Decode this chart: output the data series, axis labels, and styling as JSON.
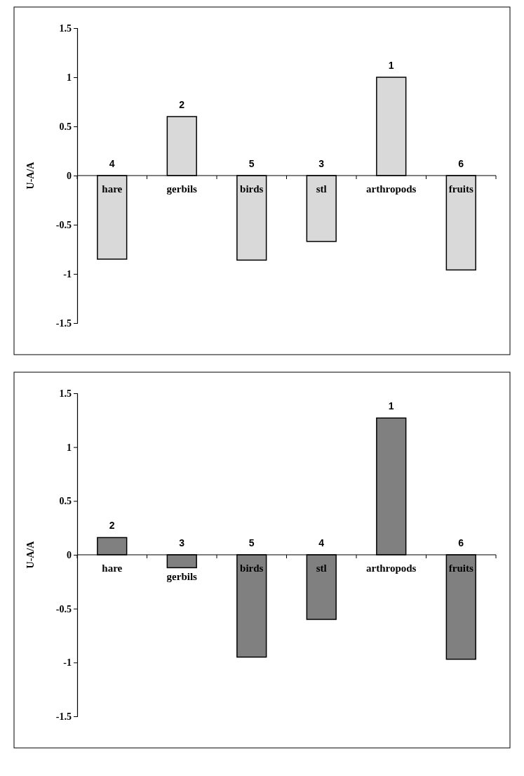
{
  "chart_data": [
    {
      "type": "bar",
      "ylabel": "U-A/A",
      "categories": [
        "hare",
        "gerbils",
        "birds",
        "stl",
        "arthropods",
        "fruits"
      ],
      "values": [
        -0.85,
        0.6,
        -0.86,
        -0.67,
        1.0,
        -0.96
      ],
      "color": "#d9d9d9",
      "ylim": [
        -1.5,
        1.5
      ],
      "yticks": [
        -1.5,
        -1,
        -0.5,
        0,
        0.5,
        1,
        1.5
      ],
      "annotations": [
        {
          "text": "4",
          "x": "hare",
          "y": 0
        },
        {
          "text": "2",
          "x": "gerbils",
          "y": 0.6
        },
        {
          "text": "5",
          "x": "birds",
          "y": 0
        },
        {
          "text": "3",
          "x": "stl",
          "y": 0
        },
        {
          "text": "1",
          "x": "arthropods",
          "y": 1.0
        },
        {
          "text": "6",
          "x": "fruits",
          "y": 0
        }
      ]
    },
    {
      "type": "bar",
      "ylabel": "U-A/A",
      "categories": [
        "hare",
        "gerbils",
        "birds",
        "stl",
        "arthropods",
        "fruits"
      ],
      "values": [
        0.16,
        -0.12,
        -0.95,
        -0.6,
        1.27,
        -0.97
      ],
      "color": "#808080",
      "ylim": [
        -1.5,
        1.5
      ],
      "yticks": [
        -1.5,
        -1,
        -0.5,
        0,
        0.5,
        1,
        1.5
      ],
      "annotations": [
        {
          "text": "2",
          "x": "hare",
          "y": 0.16
        },
        {
          "text": "3",
          "x": "gerbils",
          "y": 0
        },
        {
          "text": "5",
          "x": "birds",
          "y": 0
        },
        {
          "text": "4",
          "x": "stl",
          "y": 0
        },
        {
          "text": "1",
          "x": "arthropods",
          "y": 1.27
        },
        {
          "text": "6",
          "x": "fruits",
          "y": 0
        }
      ]
    }
  ]
}
